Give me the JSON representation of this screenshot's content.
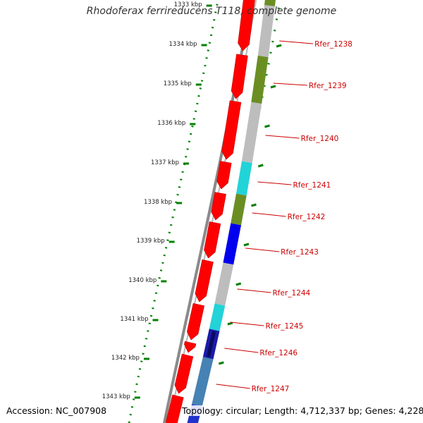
{
  "title": "Rhodoferax ferrireducens T118, complete genome",
  "footer": {
    "accession": "Accession: NC_007908",
    "summary": "Topology: circular; Length: 4,712,337 bp; Genes: 4,228"
  },
  "colors": {
    "backbone": "#808080",
    "forward_cds": "#ff0000",
    "gc_dots": "#008000",
    "label": "#cc0000"
  },
  "tick_labels": [
    "1333 kbp",
    "1334 kbp",
    "1335 kbp",
    "1336 kbp",
    "1337 kbp",
    "1338 kbp",
    "1339 kbp",
    "1340 kbp",
    "1341 kbp",
    "1342 kbp",
    "1343 kbp"
  ],
  "genes": [
    {
      "label": "Rfer_1238",
      "color": "#6b8e23"
    },
    {
      "label": "Rfer_1239",
      "color": "#6b8e23"
    },
    {
      "label": "Rfer_1240",
      "color": "#bdbdbd"
    },
    {
      "label": "Rfer_1241",
      "color": "#22d3d8"
    },
    {
      "label": "Rfer_1242",
      "color": "#6b8e23"
    },
    {
      "label": "Rfer_1243",
      "color": "#0000ee"
    },
    {
      "label": "Rfer_1244",
      "color": "#bdbdbd"
    },
    {
      "label": "Rfer_1245",
      "color": "#22d3d8"
    },
    {
      "label": "Rfer_1246",
      "color": "#1a1aa8"
    },
    {
      "label": "Rfer_1247",
      "color": "#4682b4"
    }
  ]
}
